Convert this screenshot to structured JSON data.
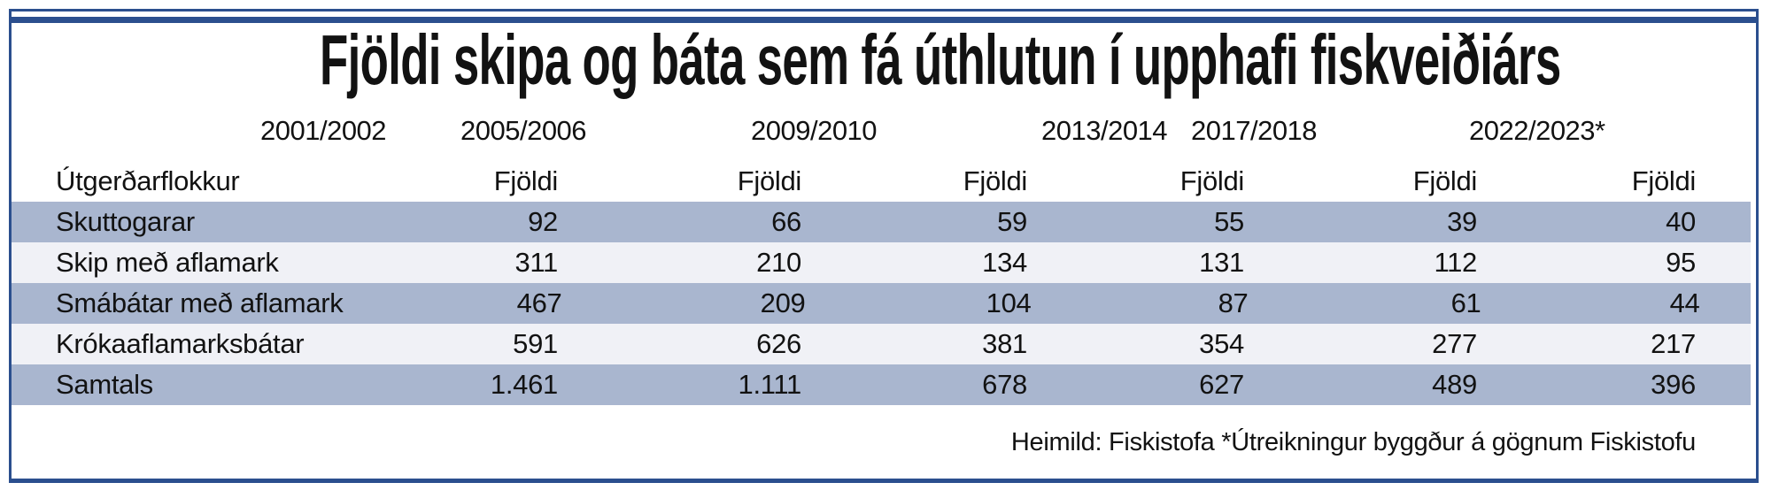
{
  "title": "Fjöldi skipa og báta sem fá úthlutun í upphafi fiskveiðiárs",
  "year_headers": [
    "2001/2002",
    "2005/2006",
    "2009/2010",
    "2013/2014",
    "2017/2018",
    "2022/2023*"
  ],
  "table": {
    "category_header": "Útgerðarflokkur",
    "value_header": "Fjöldi",
    "rows": [
      {
        "label": "Skuttogarar",
        "values": [
          "92",
          "66",
          "59",
          "55",
          "39",
          "40"
        ]
      },
      {
        "label": "Skip með aflamark",
        "values": [
          "311",
          "210",
          "134",
          "131",
          "112",
          "95"
        ]
      },
      {
        "label": "Smábátar með aflamark",
        "values": [
          "467",
          "209",
          "104",
          "87",
          "61",
          "44"
        ]
      },
      {
        "label": "Krókaaflamarksbátar",
        "values": [
          "591",
          "626",
          "381",
          "354",
          "277",
          "217"
        ]
      },
      {
        "label": "Samtals",
        "values": [
          "1.461",
          "1.111",
          "678",
          "627",
          "489",
          "396"
        ]
      }
    ]
  },
  "source_note": "Heimild: Fiskistofa *Útreikningur byggður á gögnum Fiskistofu",
  "colors": {
    "frame_blue": "#2b4f8e",
    "band_row": "#a9b6cf",
    "light_row": "#f0f1f6",
    "text": "#121212"
  },
  "chart_data": {
    "type": "table",
    "title": "Fjöldi skipa og báta sem fá úthlutun í upphafi fiskveiðiárs",
    "columns": [
      "2001/2002",
      "2005/2006",
      "2009/2010",
      "2013/2014",
      "2017/2018",
      "2022/2023*"
    ],
    "row_header_label": "Útgerðarflokkur",
    "value_label": "Fjöldi",
    "series": [
      {
        "name": "Skuttogarar",
        "values": [
          92,
          66,
          59,
          55,
          39,
          40
        ]
      },
      {
        "name": "Skip með aflamark",
        "values": [
          311,
          210,
          134,
          131,
          112,
          95
        ]
      },
      {
        "name": "Smábátar með aflamark",
        "values": [
          467,
          209,
          104,
          87,
          61,
          44
        ]
      },
      {
        "name": "Krókaaflamarksbátar",
        "values": [
          591,
          626,
          381,
          354,
          277,
          217
        ]
      },
      {
        "name": "Samtals",
        "values": [
          1461,
          1111,
          678,
          627,
          489,
          396
        ]
      }
    ],
    "annotations": [
      "Heimild: Fiskistofa",
      "*Útreikningur byggður á gögnum Fiskistofu"
    ]
  }
}
